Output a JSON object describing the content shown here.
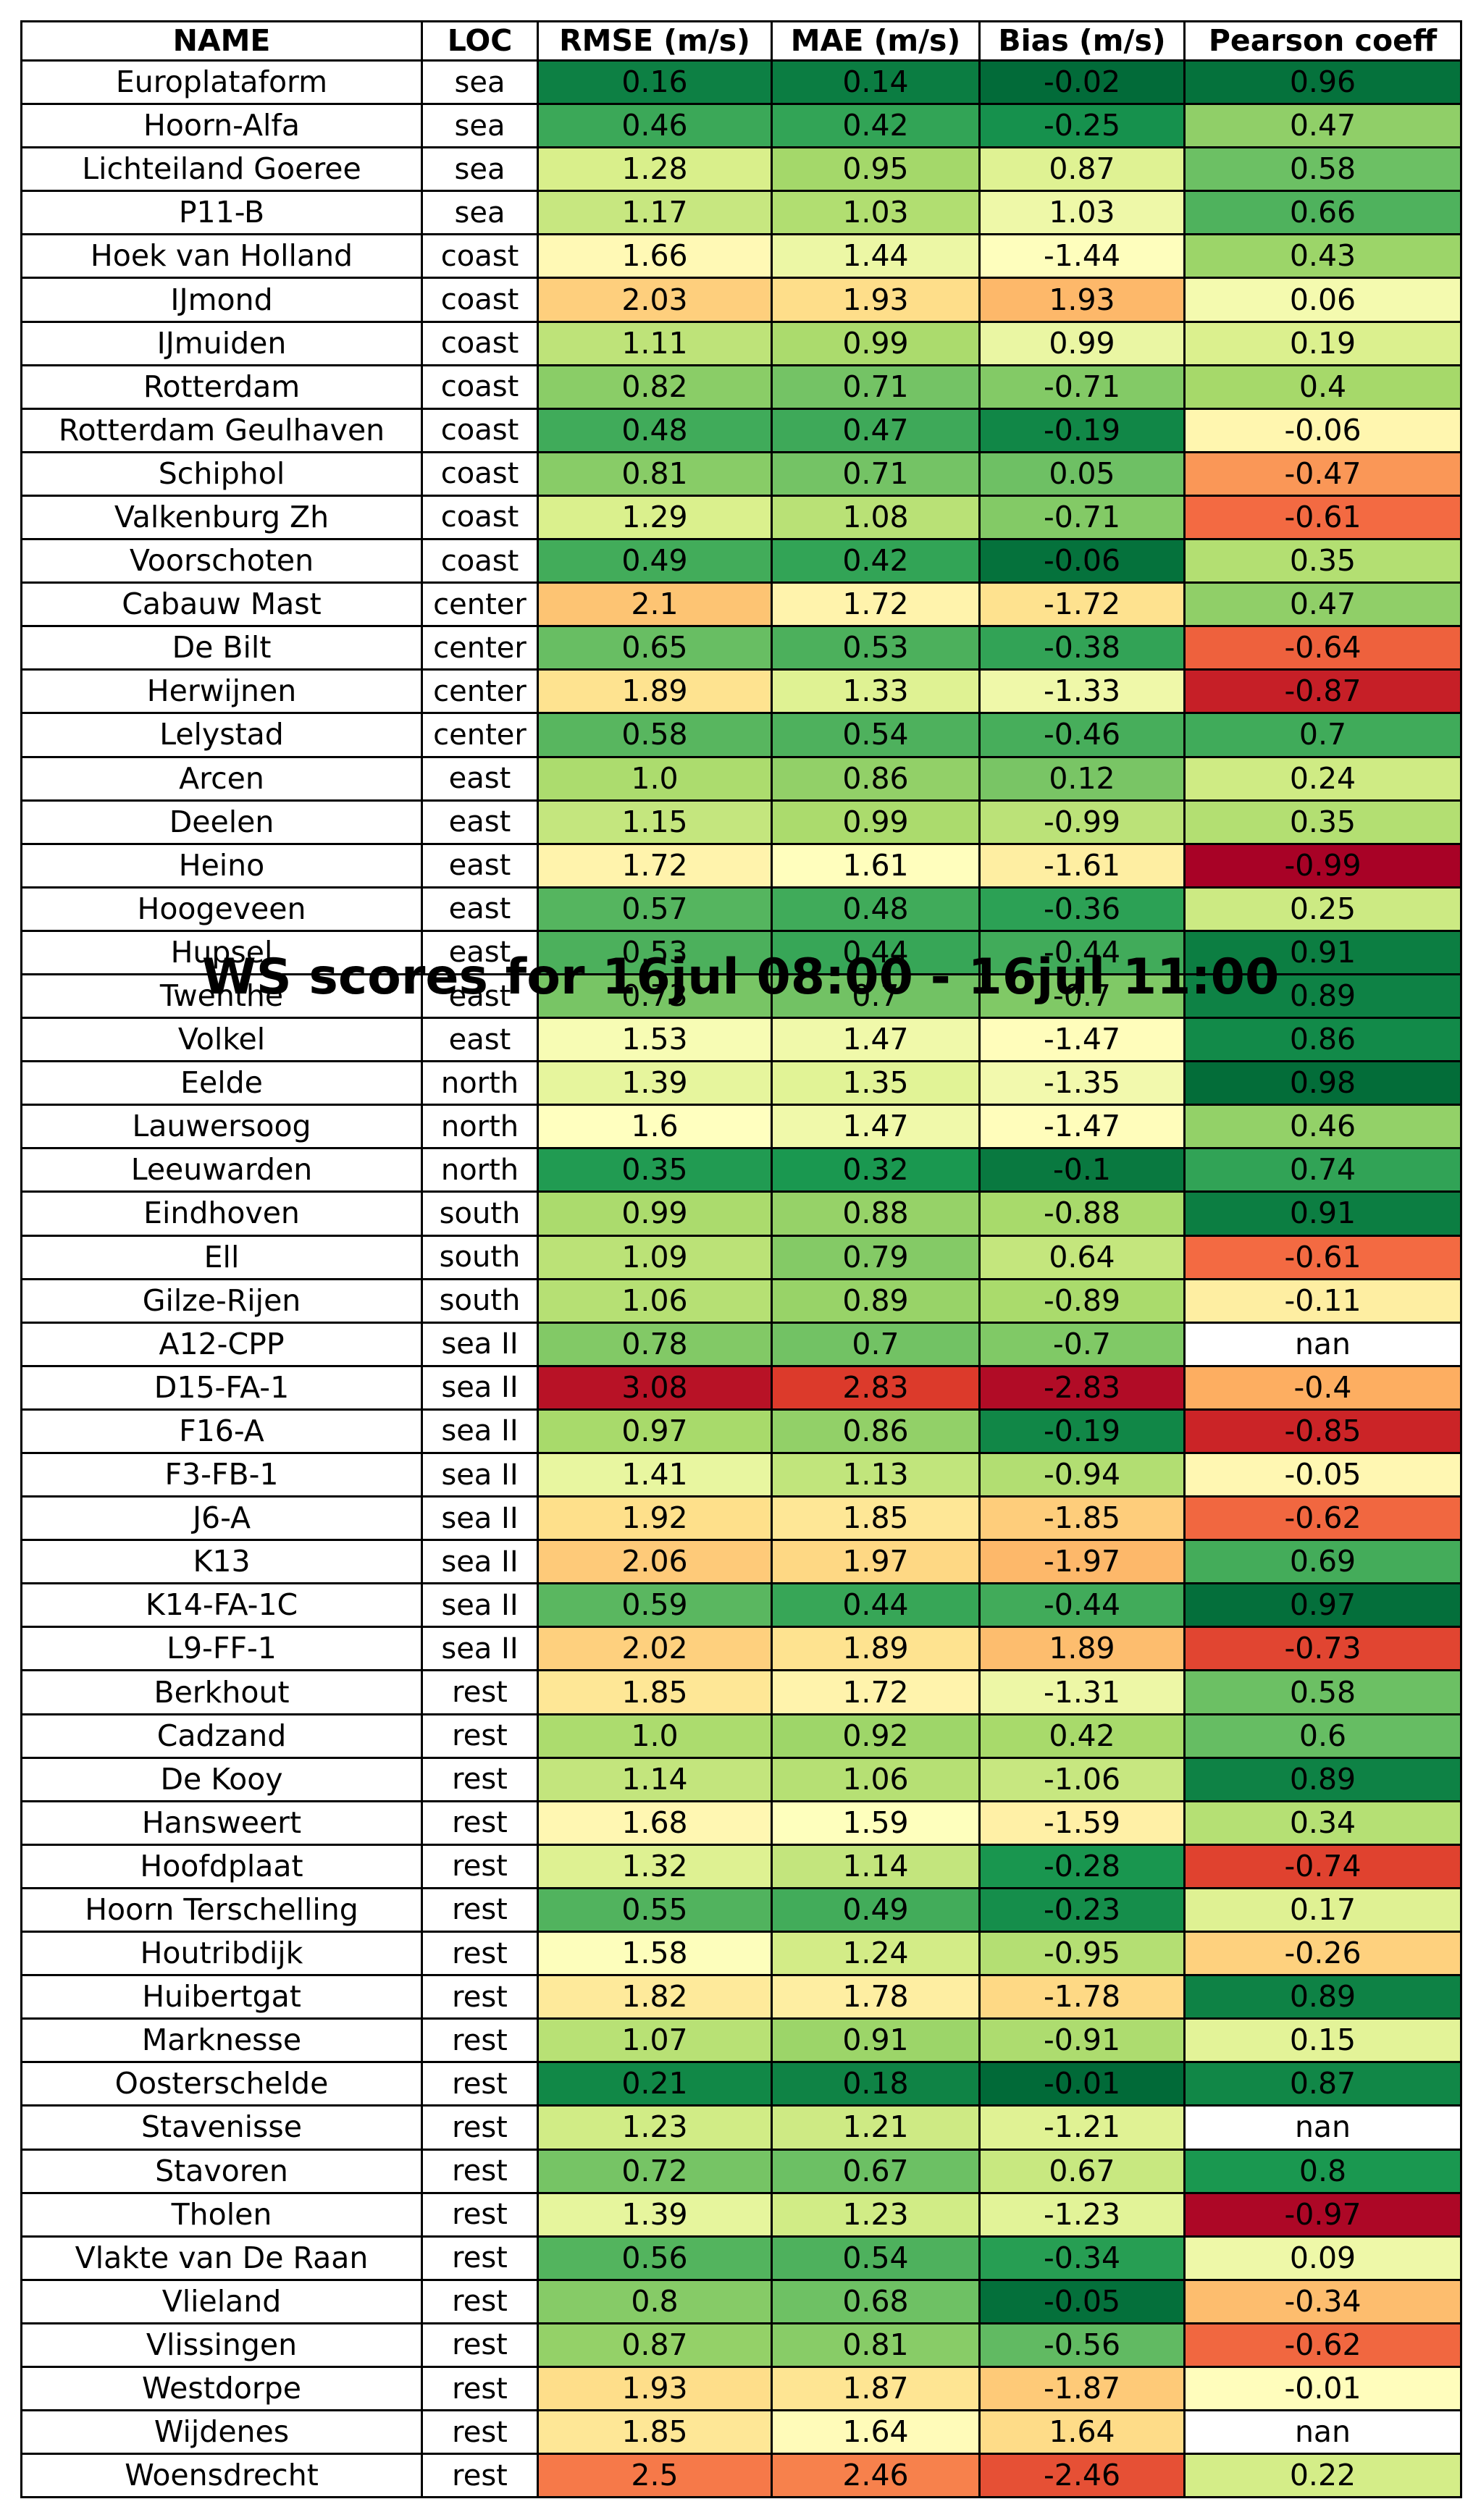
{
  "chart_data": {
    "type": "table",
    "title": "WS scores for 16jul 08:00 - 16jul 11:00",
    "columns": [
      "NAME",
      "LOC",
      "RMSE (m/s)",
      "MAE (m/s)",
      "Bias (m/s)",
      "Pearson coeff"
    ],
    "colormap": "RdYlGn",
    "rows": [
      [
        "Europlataform",
        "sea",
        "0.16",
        "0.14",
        "-0.02",
        "0.96"
      ],
      [
        "Hoorn-Alfa",
        "sea",
        "0.46",
        "0.42",
        "-0.25",
        "0.47"
      ],
      [
        "Lichteiland Goeree",
        "sea",
        "1.28",
        "0.95",
        "0.87",
        "0.58"
      ],
      [
        "P11-B",
        "sea",
        "1.17",
        "1.03",
        "1.03",
        "0.66"
      ],
      [
        "Hoek van Holland",
        "coast",
        "1.66",
        "1.44",
        "-1.44",
        "0.43"
      ],
      [
        "IJmond",
        "coast",
        "2.03",
        "1.93",
        "1.93",
        "0.06"
      ],
      [
        "IJmuiden",
        "coast",
        "1.11",
        "0.99",
        "0.99",
        "0.19"
      ],
      [
        "Rotterdam",
        "coast",
        "0.82",
        "0.71",
        "-0.71",
        "0.4"
      ],
      [
        "Rotterdam Geulhaven",
        "coast",
        "0.48",
        "0.47",
        "-0.19",
        "-0.06"
      ],
      [
        "Schiphol",
        "coast",
        "0.81",
        "0.71",
        "0.05",
        "-0.47"
      ],
      [
        "Valkenburg Zh",
        "coast",
        "1.29",
        "1.08",
        "-0.71",
        "-0.61"
      ],
      [
        "Voorschoten",
        "coast",
        "0.49",
        "0.42",
        "-0.06",
        "0.35"
      ],
      [
        "Cabauw Mast",
        "center",
        "2.1",
        "1.72",
        "-1.72",
        "0.47"
      ],
      [
        "De Bilt",
        "center",
        "0.65",
        "0.53",
        "-0.38",
        "-0.64"
      ],
      [
        "Herwijnen",
        "center",
        "1.89",
        "1.33",
        "-1.33",
        "-0.87"
      ],
      [
        "Lelystad",
        "center",
        "0.58",
        "0.54",
        "-0.46",
        "0.7"
      ],
      [
        "Arcen",
        "east",
        "1.0",
        "0.86",
        "0.12",
        "0.24"
      ],
      [
        "Deelen",
        "east",
        "1.15",
        "0.99",
        "-0.99",
        "0.35"
      ],
      [
        "Heino",
        "east",
        "1.72",
        "1.61",
        "-1.61",
        "-0.99"
      ],
      [
        "Hoogeveen",
        "east",
        "0.57",
        "0.48",
        "-0.36",
        "0.25"
      ],
      [
        "Hupsel",
        "east",
        "0.53",
        "0.44",
        "-0.44",
        "0.91"
      ],
      [
        "Twenthe",
        "east",
        "0.73",
        "0.7",
        "-0.7",
        "0.89"
      ],
      [
        "Volkel",
        "east",
        "1.53",
        "1.47",
        "-1.47",
        "0.86"
      ],
      [
        "Eelde",
        "north",
        "1.39",
        "1.35",
        "-1.35",
        "0.98"
      ],
      [
        "Lauwersoog",
        "north",
        "1.6",
        "1.47",
        "-1.47",
        "0.46"
      ],
      [
        "Leeuwarden",
        "north",
        "0.35",
        "0.32",
        "-0.1",
        "0.74"
      ],
      [
        "Eindhoven",
        "south",
        "0.99",
        "0.88",
        "-0.88",
        "0.91"
      ],
      [
        "Ell",
        "south",
        "1.09",
        "0.79",
        "0.64",
        "-0.61"
      ],
      [
        "Gilze-Rijen",
        "south",
        "1.06",
        "0.89",
        "-0.89",
        "-0.11"
      ],
      [
        "A12-CPP",
        "sea II",
        "0.78",
        "0.7",
        "-0.7",
        "nan"
      ],
      [
        "D15-FA-1",
        "sea II",
        "3.08",
        "2.83",
        "-2.83",
        "-0.4"
      ],
      [
        "F16-A",
        "sea II",
        "0.97",
        "0.86",
        "-0.19",
        "-0.85"
      ],
      [
        "F3-FB-1",
        "sea II",
        "1.41",
        "1.13",
        "-0.94",
        "-0.05"
      ],
      [
        "J6-A",
        "sea II",
        "1.92",
        "1.85",
        "-1.85",
        "-0.62"
      ],
      [
        "K13",
        "sea II",
        "2.06",
        "1.97",
        "-1.97",
        "0.69"
      ],
      [
        "K14-FA-1C",
        "sea II",
        "0.59",
        "0.44",
        "-0.44",
        "0.97"
      ],
      [
        "L9-FF-1",
        "sea II",
        "2.02",
        "1.89",
        "1.89",
        "-0.73"
      ],
      [
        "Berkhout",
        "rest",
        "1.85",
        "1.72",
        "-1.31",
        "0.58"
      ],
      [
        "Cadzand",
        "rest",
        "1.0",
        "0.92",
        "0.42",
        "0.6"
      ],
      [
        "De Kooy",
        "rest",
        "1.14",
        "1.06",
        "-1.06",
        "0.89"
      ],
      [
        "Hansweert",
        "rest",
        "1.68",
        "1.59",
        "-1.59",
        "0.34"
      ],
      [
        "Hoofdplaat",
        "rest",
        "1.32",
        "1.14",
        "-0.28",
        "-0.74"
      ],
      [
        "Hoorn Terschelling",
        "rest",
        "0.55",
        "0.49",
        "-0.23",
        "0.17"
      ],
      [
        "Houtribdijk",
        "rest",
        "1.58",
        "1.24",
        "-0.95",
        "-0.26"
      ],
      [
        "Huibertgat",
        "rest",
        "1.82",
        "1.78",
        "-1.78",
        "0.89"
      ],
      [
        "Marknesse",
        "rest",
        "1.07",
        "0.91",
        "-0.91",
        "0.15"
      ],
      [
        "Oosterschelde",
        "rest",
        "0.21",
        "0.18",
        "-0.01",
        "0.87"
      ],
      [
        "Stavenisse",
        "rest",
        "1.23",
        "1.21",
        "-1.21",
        "nan"
      ],
      [
        "Stavoren",
        "rest",
        "0.72",
        "0.67",
        "0.67",
        "0.8"
      ],
      [
        "Tholen",
        "rest",
        "1.39",
        "1.23",
        "-1.23",
        "-0.97"
      ],
      [
        "Vlakte van De Raan",
        "rest",
        "0.56",
        "0.54",
        "-0.34",
        "0.09"
      ],
      [
        "Vlieland",
        "rest",
        "0.8",
        "0.68",
        "-0.05",
        "-0.34"
      ],
      [
        "Vlissingen",
        "rest",
        "0.87",
        "0.81",
        "-0.56",
        "-0.62"
      ],
      [
        "Westdorpe",
        "rest",
        "1.93",
        "1.87",
        "-1.87",
        "-0.01"
      ],
      [
        "Wijdenes",
        "rest",
        "1.85",
        "1.64",
        "1.64",
        "nan"
      ],
      [
        "Woensdrecht",
        "rest",
        "2.5",
        "2.46",
        "-2.46",
        "0.22"
      ]
    ]
  }
}
